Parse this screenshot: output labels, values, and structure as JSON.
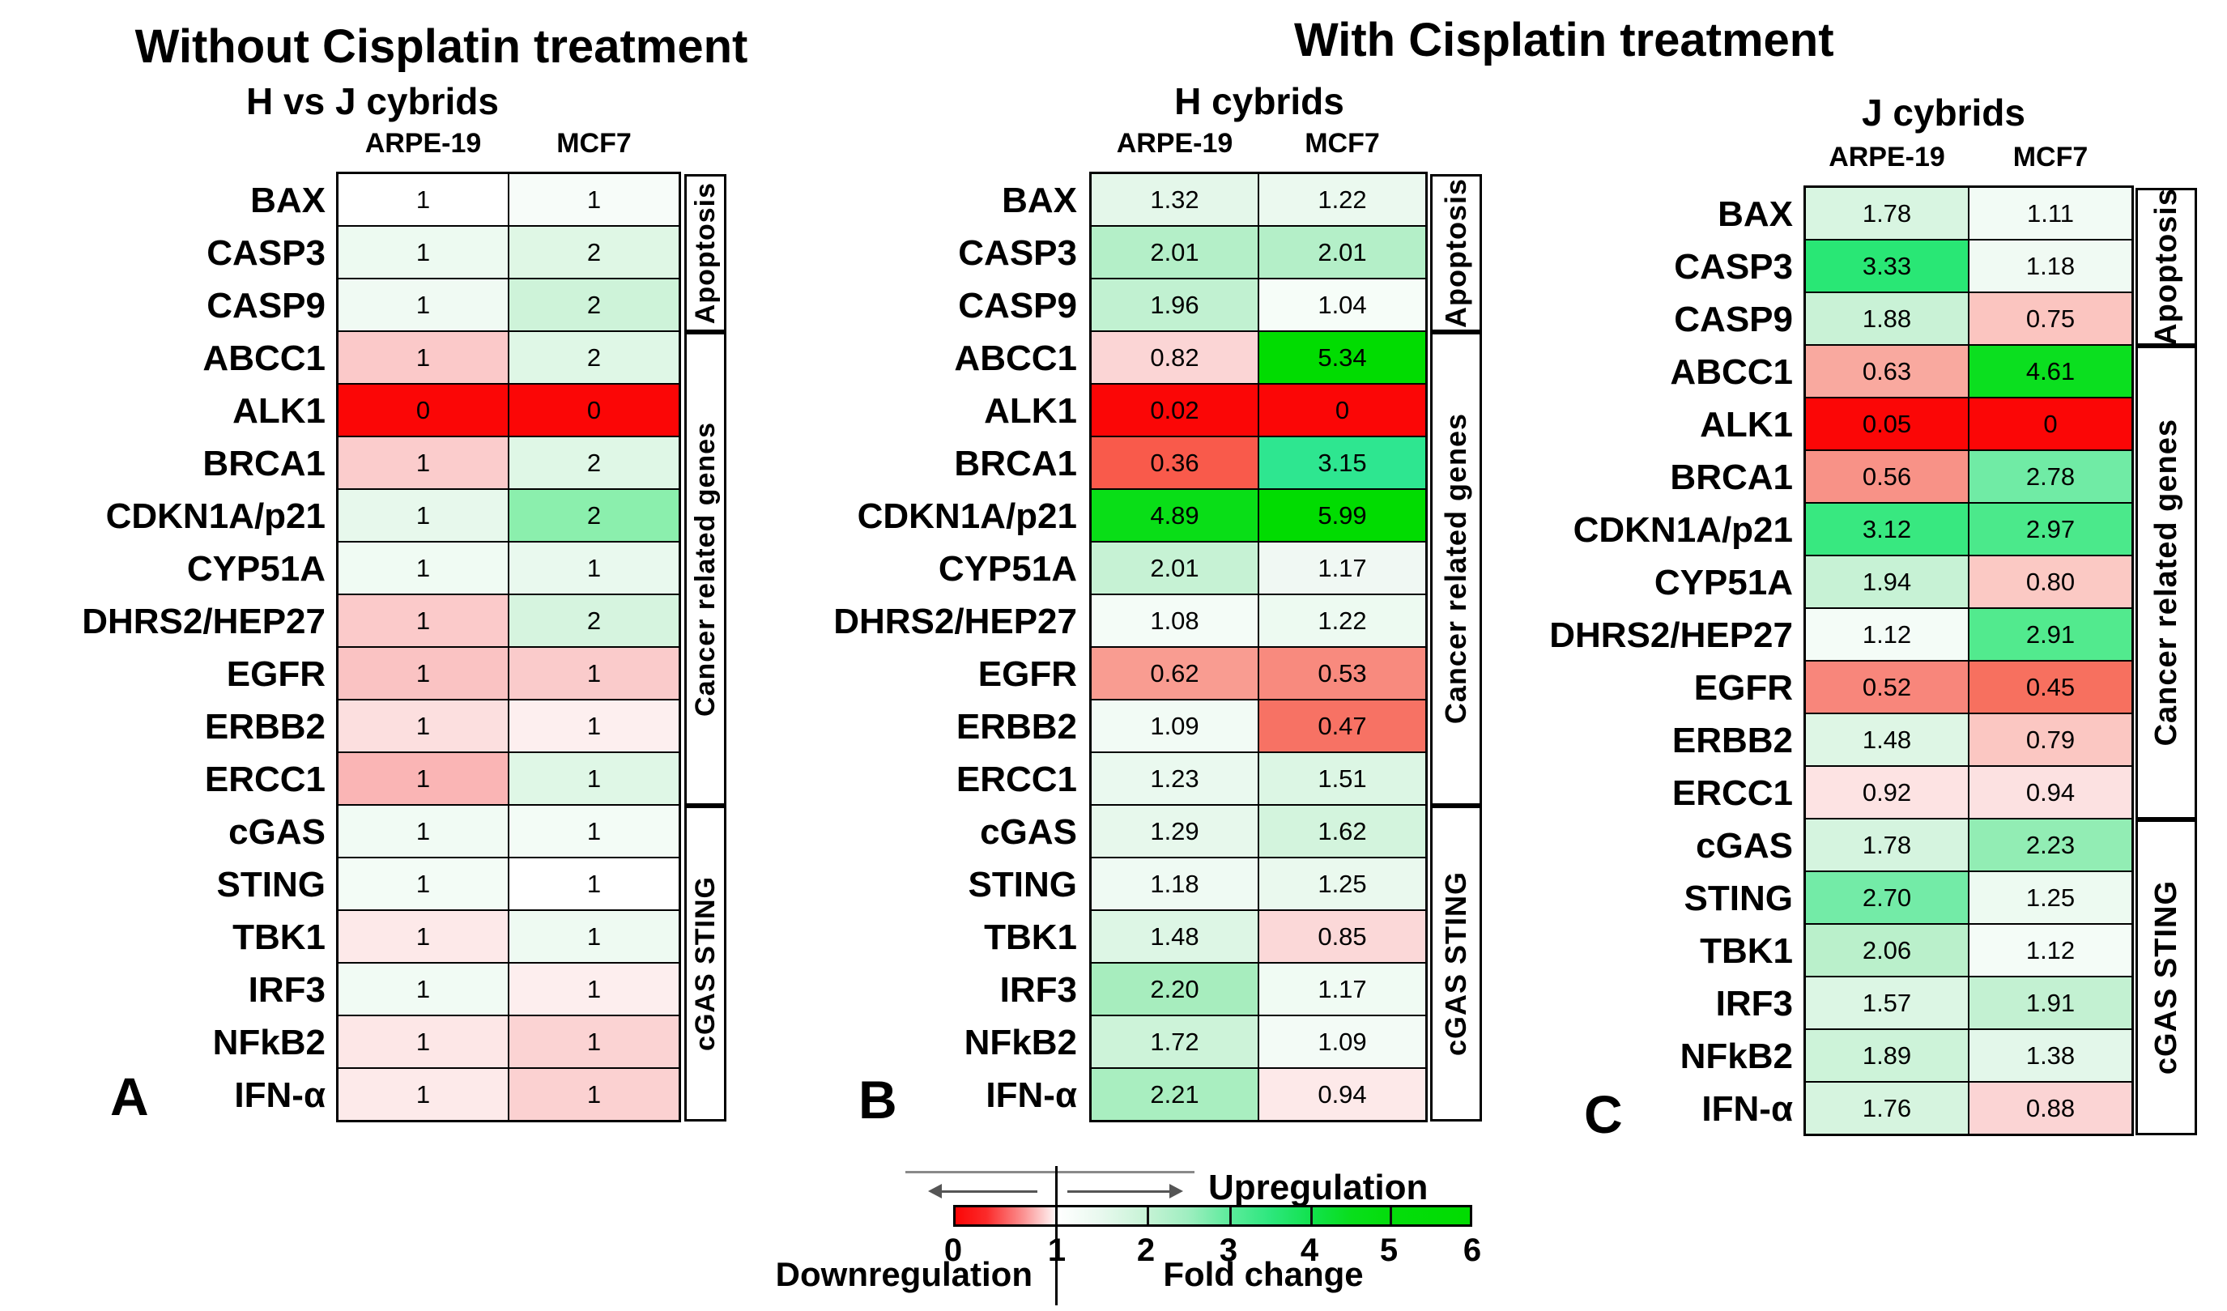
{
  "chart_data": {
    "type": "heatmap",
    "left_title": "Without Cisplatin treatment",
    "right_title": "With Cisplatin treatment",
    "value_axis": {
      "label": "Fold change",
      "range": [
        0,
        6
      ],
      "neutral": 1
    },
    "legend": {
      "upregulation_label": "Upregulation",
      "downregulation_label": "Downregulation",
      "axis_label": "Fold change",
      "ticks": [
        "0",
        "1",
        "2",
        "3",
        "4",
        "5",
        "6"
      ],
      "down_color": "#FB0606",
      "neutral_color": "#FFFFFF",
      "up_color": "#01DC01"
    },
    "panels": [
      {
        "letter": "A",
        "subtitle": "H vs J cybrids",
        "columns": [
          "ARPE-19",
          "MCF7"
        ],
        "groups": [
          {
            "label": "Apoptosis",
            "rows": 3
          },
          {
            "label": "Cancer related genes",
            "rows": 9
          },
          {
            "label": "cGAS STING",
            "rows": 6
          }
        ],
        "rows": [
          {
            "gene": "BAX",
            "values": [
              "1",
              "1"
            ],
            "colors": [
              "#FFFFFF",
              "#F7FCF9"
            ]
          },
          {
            "gene": "CASP3",
            "values": [
              "1",
              "2"
            ],
            "colors": [
              "#EDFAF1",
              "#DFF7E5"
            ]
          },
          {
            "gene": "CASP9",
            "values": [
              "1",
              "2"
            ],
            "colors": [
              "#F0FAF3",
              "#CEF3D9"
            ]
          },
          {
            "gene": "ABCC1",
            "values": [
              "1",
              "2"
            ],
            "colors": [
              "#FBC9C9",
              "#DFF7E6"
            ]
          },
          {
            "gene": "ALK1",
            "values": [
              "0",
              "0"
            ],
            "colors": [
              "#FB0606",
              "#FB0606"
            ]
          },
          {
            "gene": "BRCA1",
            "values": [
              "1",
              "2"
            ],
            "colors": [
              "#FBCCCC",
              "#DFF7E6"
            ]
          },
          {
            "gene": "CDKN1A/p21",
            "values": [
              "1",
              "2"
            ],
            "colors": [
              "#E7F8EC",
              "#8BEFAD"
            ]
          },
          {
            "gene": "CYP51A",
            "values": [
              "1",
              "1"
            ],
            "colors": [
              "#F0FBF3",
              "#E9F9EE"
            ]
          },
          {
            "gene": "DHRS2/HEP27",
            "values": [
              "1",
              "2"
            ],
            "colors": [
              "#FBCACA",
              "#D6F4DF"
            ]
          },
          {
            "gene": "EGFR",
            "values": [
              "1",
              "1"
            ],
            "colors": [
              "#FAC3C3",
              "#FACBCB"
            ]
          },
          {
            "gene": "ERBB2",
            "values": [
              "1",
              "1"
            ],
            "colors": [
              "#FCDFDF",
              "#FDEFEF"
            ]
          },
          {
            "gene": "ERCC1",
            "values": [
              "1",
              "1"
            ],
            "colors": [
              "#FAB5B5",
              "#DFF7E6"
            ]
          },
          {
            "gene": "cGAS",
            "values": [
              "1",
              "1"
            ],
            "colors": [
              "#F1FBF4",
              "#F3FCF6"
            ]
          },
          {
            "gene": "STING",
            "values": [
              "1",
              "1"
            ],
            "colors": [
              "#F3FCF6",
              "#FFFFFF"
            ]
          },
          {
            "gene": "TBK1",
            "values": [
              "1",
              "1"
            ],
            "colors": [
              "#FDE9E9",
              "#EEFAF2"
            ]
          },
          {
            "gene": "IRF3",
            "values": [
              "1",
              "1"
            ],
            "colors": [
              "#F1FBF4",
              "#FDEEEE"
            ]
          },
          {
            "gene": "NFkB2",
            "values": [
              "1",
              "1"
            ],
            "colors": [
              "#FDE7E7",
              "#FBD3D3"
            ]
          },
          {
            "gene": "IFN-α",
            "values": [
              "1",
              "1"
            ],
            "colors": [
              "#FDEAEA",
              "#FBD1D1"
            ]
          }
        ]
      },
      {
        "letter": "B",
        "subtitle": "H cybrids",
        "columns": [
          "ARPE-19",
          "MCF7"
        ],
        "groups": [
          {
            "label": "Apoptosis",
            "rows": 3
          },
          {
            "label": "Cancer related genes",
            "rows": 9
          },
          {
            "label": "cGAS STING",
            "rows": 6
          }
        ],
        "rows": [
          {
            "gene": "BAX",
            "values": [
              "1.32",
              "1.22"
            ],
            "colors": [
              "#E4F7EA",
              "#EBF9EF"
            ]
          },
          {
            "gene": "CASP3",
            "values": [
              "2.01",
              "2.01"
            ],
            "colors": [
              "#B4EFC8",
              "#B4EFC8"
            ]
          },
          {
            "gene": "CASP9",
            "values": [
              "1.96",
              "1.04"
            ],
            "colors": [
              "#C1F1D1",
              "#F6FDF8"
            ]
          },
          {
            "gene": "ABCC1",
            "values": [
              "0.82",
              "5.34"
            ],
            "colors": [
              "#FBD5D5",
              "#01DC01"
            ]
          },
          {
            "gene": "ALK1",
            "values": [
              "0.02",
              "0"
            ],
            "colors": [
              "#FB0606",
              "#FB0606"
            ]
          },
          {
            "gene": "BRCA1",
            "values": [
              "0.36",
              "3.15"
            ],
            "colors": [
              "#F95A4B",
              "#2EE690"
            ]
          },
          {
            "gene": "CDKN1A/p21",
            "values": [
              "4.89",
              "5.99"
            ],
            "colors": [
              "#09DE17",
              "#01DC01"
            ]
          },
          {
            "gene": "CYP51A",
            "values": [
              "2.01",
              "1.17"
            ],
            "colors": [
              "#C6F2D4",
              "#F0F8F3"
            ]
          },
          {
            "gene": "DHRS2/HEP27",
            "values": [
              "1.08",
              "1.22"
            ],
            "colors": [
              "#F4FCF7",
              "#EDFAF1"
            ]
          },
          {
            "gene": "EGFR",
            "values": [
              "0.62",
              "0.53"
            ],
            "colors": [
              "#F99C91",
              "#F88A7E"
            ]
          },
          {
            "gene": "ERBB2",
            "values": [
              "1.09",
              "0.47"
            ],
            "colors": [
              "#F2FBF5",
              "#F77264"
            ]
          },
          {
            "gene": "ERCC1",
            "values": [
              "1.23",
              "1.51"
            ],
            "colors": [
              "#EAF9EF",
              "#DCF6E4"
            ]
          },
          {
            "gene": "cGAS",
            "values": [
              "1.29",
              "1.62"
            ],
            "colors": [
              "#E7F8EC",
              "#D3F4DD"
            ]
          },
          {
            "gene": "STING",
            "values": [
              "1.18",
              "1.25"
            ],
            "colors": [
              "#EFFAF3",
              "#EAF9EE"
            ]
          },
          {
            "gene": "TBK1",
            "values": [
              "1.48",
              "0.85"
            ],
            "colors": [
              "#DDF6E5",
              "#FBD8D8"
            ]
          },
          {
            "gene": "IRF3",
            "values": [
              "2.20",
              "1.17"
            ],
            "colors": [
              "#A7EDBE",
              "#F0FBF3"
            ]
          },
          {
            "gene": "NFkB2",
            "values": [
              "1.72",
              "1.09"
            ],
            "colors": [
              "#CDF3D9",
              "#F3FBF6"
            ]
          },
          {
            "gene": "IFN-α",
            "values": [
              "2.21",
              "0.94"
            ],
            "colors": [
              "#A9EEC0",
              "#FDE9E9"
            ]
          }
        ]
      },
      {
        "letter": "C",
        "subtitle": "J cybrids",
        "columns": [
          "ARPE-19",
          "MCF7"
        ],
        "groups": [
          {
            "label": "Apoptosis",
            "rows": 3
          },
          {
            "label": "Cancer related genes",
            "rows": 9
          },
          {
            "label": "cGAS STING",
            "rows": 6
          }
        ],
        "rows": [
          {
            "gene": "BAX",
            "values": [
              "1.78",
              "1.11"
            ],
            "colors": [
              "#D8F5E1",
              "#F2FBF5"
            ]
          },
          {
            "gene": "CASP3",
            "values": [
              "3.33",
              "1.18"
            ],
            "colors": [
              "#29E775",
              "#F0FAF3"
            ]
          },
          {
            "gene": "CASP9",
            "values": [
              "1.88",
              "0.75"
            ],
            "colors": [
              "#C9F2D6",
              "#FBC5C0"
            ]
          },
          {
            "gene": "ABCC1",
            "values": [
              "0.63",
              "4.61"
            ],
            "colors": [
              "#F9A99F",
              "#0BDF1F"
            ]
          },
          {
            "gene": "ALK1",
            "values": [
              "0.05",
              "0"
            ],
            "colors": [
              "#FB0606",
              "#FB0606"
            ]
          },
          {
            "gene": "BRCA1",
            "values": [
              "0.56",
              "2.78"
            ],
            "colors": [
              "#F89287",
              "#70EBA5"
            ]
          },
          {
            "gene": "CDKN1A/p21",
            "values": [
              "3.12",
              "2.97"
            ],
            "colors": [
              "#38E880",
              "#4BE98B"
            ]
          },
          {
            "gene": "CYP51A",
            "values": [
              "1.94",
              "0.80"
            ],
            "colors": [
              "#C7F2D5",
              "#FBC9C4"
            ]
          },
          {
            "gene": "DHRS2/HEP27",
            "values": [
              "1.12",
              "2.91"
            ],
            "colors": [
              "#F4FCF7",
              "#52EA8E"
            ]
          },
          {
            "gene": "EGFR",
            "values": [
              "0.52",
              "0.45"
            ],
            "colors": [
              "#F8867B",
              "#F7705F"
            ]
          },
          {
            "gene": "ERBB2",
            "values": [
              "1.48",
              "0.79"
            ],
            "colors": [
              "#DEF6E5",
              "#FBC7C2"
            ]
          },
          {
            "gene": "ERCC1",
            "values": [
              "0.92",
              "0.94"
            ],
            "colors": [
              "#FDE3E3",
              "#FCE1E1"
            ]
          },
          {
            "gene": "cGAS",
            "values": [
              "1.78",
              "2.23"
            ],
            "colors": [
              "#D5F4DF",
              "#92EDB4"
            ]
          },
          {
            "gene": "STING",
            "values": [
              "2.70",
              "1.25"
            ],
            "colors": [
              "#73EBA7",
              "#EDFAF1"
            ]
          },
          {
            "gene": "TBK1",
            "values": [
              "2.06",
              "1.12"
            ],
            "colors": [
              "#BAF0CB",
              "#F4FCF7"
            ]
          },
          {
            "gene": "IRF3",
            "values": [
              "1.57",
              "1.91"
            ],
            "colors": [
              "#DCF6E4",
              "#C3F1D2"
            ]
          },
          {
            "gene": "NFkB2",
            "values": [
              "1.89",
              "1.38"
            ],
            "colors": [
              "#CDF3D9",
              "#E3F7EA"
            ]
          },
          {
            "gene": "IFN-α",
            "values": [
              "1.76",
              "0.88"
            ],
            "colors": [
              "#D6F4DF",
              "#FBD4D4"
            ]
          }
        ]
      }
    ]
  }
}
